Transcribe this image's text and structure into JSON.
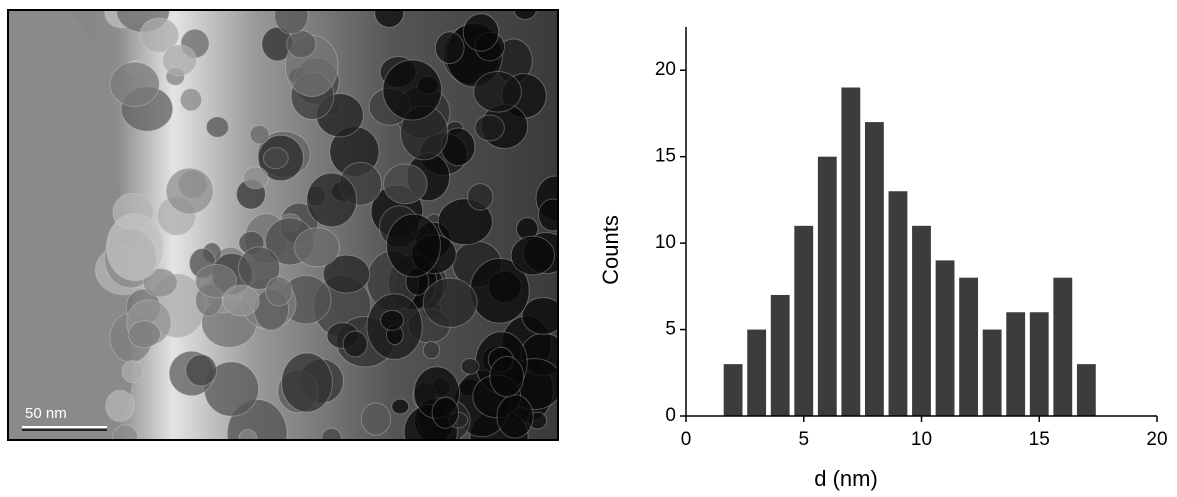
{
  "micrograph": {
    "scale_bar": "50 nm"
  },
  "chart_data": {
    "type": "bar",
    "x": [
      2,
      3,
      4,
      5,
      6,
      7,
      8,
      9,
      10,
      11,
      12,
      13,
      14,
      15,
      16,
      17
    ],
    "values": [
      3,
      5,
      7,
      11,
      15,
      19,
      17,
      13,
      11,
      9,
      8,
      5,
      6,
      6,
      8,
      3
    ],
    "color": "#3c3c3c",
    "xlabel": "d (nm)",
    "ylabel": "Counts",
    "xlim": [
      0,
      20
    ],
    "xticks": [
      0,
      5,
      10,
      15,
      20
    ],
    "ylim": [
      0,
      22.5
    ],
    "yticks": [
      0,
      5,
      10,
      15,
      20
    ],
    "grid": false
  }
}
